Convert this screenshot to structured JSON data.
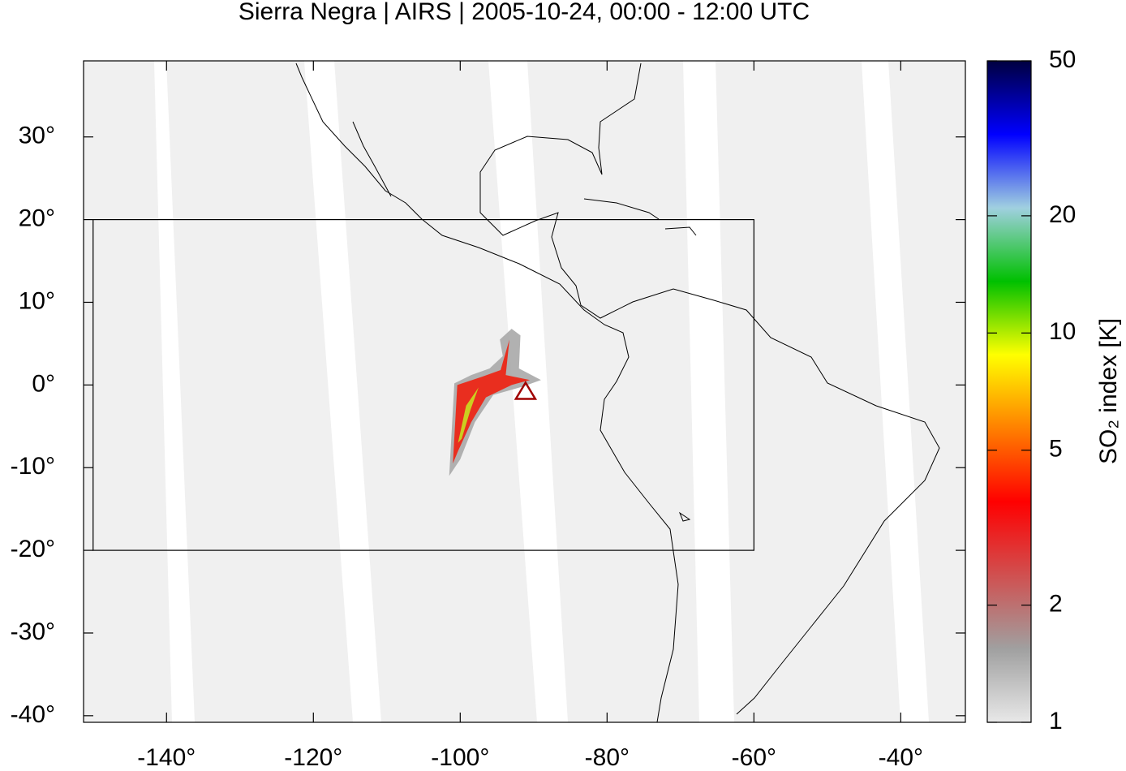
{
  "chart_data": {
    "type": "map",
    "title": "Sierra Negra | AIRS | 2005-10-24, 00:00 - 12:00 UTC",
    "xlim": [
      -151.3,
      -31.2
    ],
    "ylim": [
      -40.8,
      39.2
    ],
    "xticks": [
      {
        "value": -140,
        "label": "-140°"
      },
      {
        "value": -120,
        "label": "-120°"
      },
      {
        "value": -100,
        "label": "-100°"
      },
      {
        "value": -80,
        "label": "-80°"
      },
      {
        "value": -60,
        "label": "-60°"
      },
      {
        "value": -40,
        "label": "-40°"
      }
    ],
    "yticks": [
      {
        "value": 30,
        "label": "30°"
      },
      {
        "value": 20,
        "label": "20°"
      },
      {
        "value": 10,
        "label": "10°"
      },
      {
        "value": 0,
        "label": "0°"
      },
      {
        "value": -10,
        "label": "-10°"
      },
      {
        "value": -20,
        "label": "-20°"
      },
      {
        "value": -30,
        "label": "-30°"
      },
      {
        "value": -40,
        "label": "-40°"
      }
    ],
    "region": {
      "lon": [
        -150,
        -60
      ],
      "lat": [
        -20,
        20
      ]
    },
    "volcano": {
      "lon": -91.1,
      "lat": -0.8,
      "color": "#a00000"
    },
    "plume": [
      {
        "value": 1.5,
        "color": "#a8a8a8",
        "lon": [
          -101.5,
          -100.8,
          -98.5,
          -96,
          -94.2,
          -94.6,
          -93,
          -91.8,
          -92,
          -89,
          -91.5,
          -95.5,
          -98,
          -100
        ],
        "lat": [
          -11,
          0.2,
          1.2,
          2,
          3.5,
          5.5,
          6.8,
          6,
          2,
          0.6,
          -0.2,
          -1.2,
          -4.5,
          -9
        ]
      },
      {
        "value": 3,
        "color": "#f02010",
        "lon": [
          -101,
          -100.4,
          -97,
          -94.5,
          -93.3,
          -93.8,
          -90.5,
          -93,
          -96.5,
          -98.5,
          -100.3
        ],
        "lat": [
          -9.5,
          0,
          1,
          1.8,
          5.5,
          1.2,
          0.6,
          0,
          -1.5,
          -4.5,
          -8
        ]
      },
      {
        "value": 8,
        "color": "#c8e020",
        "lon": [
          -100.3,
          -99.2,
          -97.5,
          -98.6,
          -99.8
        ],
        "lat": [
          -7,
          -2.5,
          -0.3,
          -3,
          -6.5
        ]
      }
    ],
    "colorbar": {
      "label": "SO₂ index [K]",
      "scale": "log",
      "lim": [
        1,
        50
      ],
      "ticks": [
        1,
        2,
        5,
        10,
        20,
        50
      ],
      "colors": [
        "#e8e8e8",
        "#a0a0a0",
        "#d05050",
        "#ff0000",
        "#ff8000",
        "#ffff00",
        "#00c000",
        "#a0d0e0",
        "#0000ff",
        "#000040"
      ]
    }
  }
}
